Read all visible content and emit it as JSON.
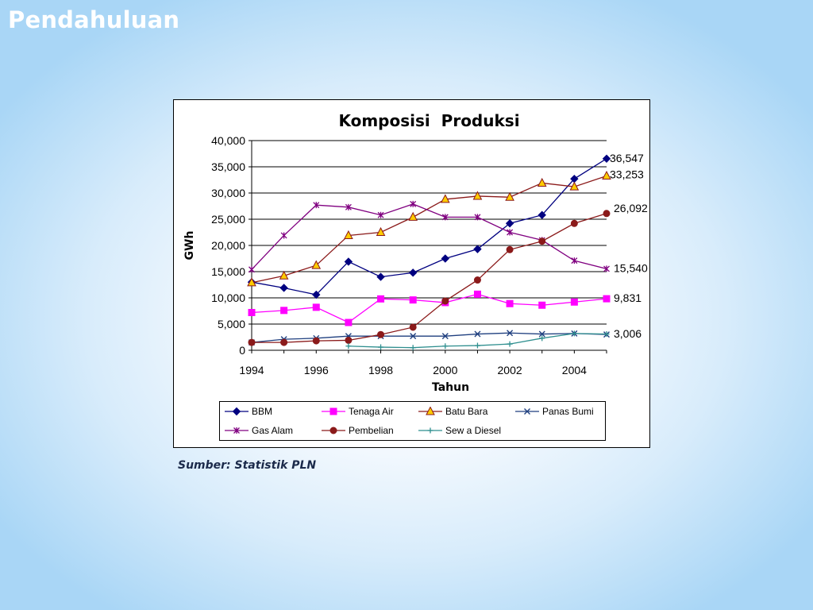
{
  "slide": {
    "title": "Pendahuluan",
    "source": "Sumber: Statistik PLN"
  },
  "chart_data": {
    "type": "line",
    "title": "Komposisi  Produksi",
    "xlabel": "Tahun",
    "ylabel": "GWh",
    "x": [
      1994,
      1995,
      1996,
      1997,
      1998,
      1999,
      2000,
      2001,
      2002,
      2003,
      2004,
      2005
    ],
    "xlim": [
      1994,
      2005
    ],
    "ylim": [
      0,
      40000
    ],
    "x_ticks": [
      "1994",
      "1996",
      "1998",
      "2000",
      "2002",
      "2004"
    ],
    "y_ticks": [
      "0",
      "5,000",
      "10,000",
      "15,000",
      "20,000",
      "25,000",
      "30,000",
      "35,000",
      "40,000"
    ],
    "grid": "horizontal",
    "legend_position": "bottom",
    "series": [
      {
        "name": "BBM",
        "color": "#000080",
        "marker": "diamond",
        "values": [
          13000,
          11900,
          10600,
          16900,
          14000,
          14800,
          17500,
          19300,
          24200,
          25800,
          32700,
          36547
        ]
      },
      {
        "name": "Tenaga Air",
        "color": "#ff00ff",
        "marker": "square",
        "values": [
          7200,
          7600,
          8200,
          5300,
          9800,
          9600,
          9100,
          10700,
          8900,
          8600,
          9200,
          9831
        ]
      },
      {
        "name": "Batu Bara",
        "color": "#8b1a1a",
        "marker": "triangle",
        "marker_fill": "#ffcc00",
        "values": [
          12900,
          14200,
          16200,
          21900,
          22500,
          25400,
          28800,
          29400,
          29200,
          31900,
          31200,
          33253
        ]
      },
      {
        "name": "Panas Bumi",
        "color": "#1f3f7f",
        "marker": "x",
        "values": [
          1500,
          2100,
          2300,
          2700,
          2700,
          2700,
          2700,
          3100,
          3300,
          3100,
          3200,
          3006
        ]
      },
      {
        "name": "Gas Alam",
        "color": "#800080",
        "marker": "star",
        "values": [
          15400,
          21900,
          27700,
          27300,
          25800,
          27900,
          25400,
          25400,
          22500,
          21000,
          17100,
          15540
        ]
      },
      {
        "name": "Pembelian",
        "color": "#8b1a1a",
        "marker": "circle",
        "values": [
          1500,
          1500,
          1800,
          1900,
          3000,
          4400,
          9400,
          13400,
          19200,
          20800,
          24200,
          26092
        ]
      },
      {
        "name": "Sew a Diesel",
        "color": "#2f8f8f",
        "marker": "plus",
        "values": [
          null,
          null,
          null,
          800,
          600,
          500,
          800,
          900,
          1200,
          2300,
          3200,
          3100
        ]
      }
    ],
    "end_labels": [
      {
        "series": "BBM",
        "text": "36,547"
      },
      {
        "series": "Batu Bara",
        "text": "33,253"
      },
      {
        "series": "Pembelian",
        "text": "26,092"
      },
      {
        "series": "Gas Alam",
        "text": "15,540"
      },
      {
        "series": "Tenaga Air",
        "text": "9,831"
      },
      {
        "series": "Panas Bumi",
        "text": "3,006"
      }
    ]
  }
}
